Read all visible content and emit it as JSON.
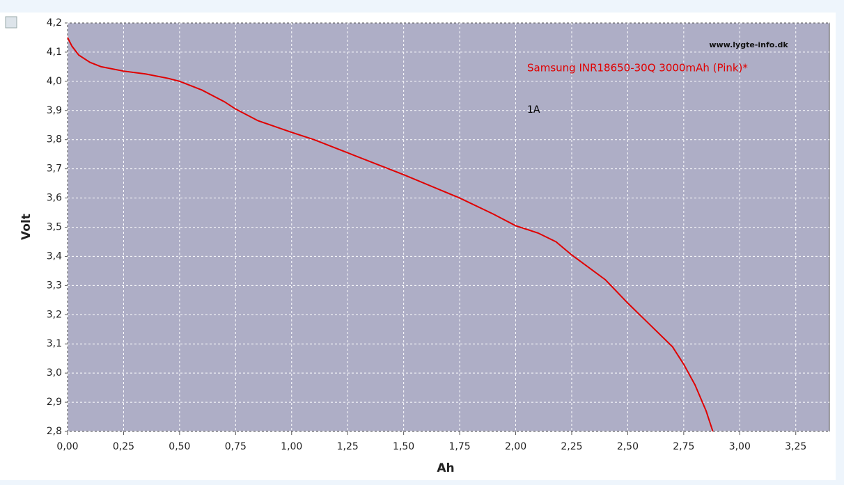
{
  "chart_data": {
    "type": "line",
    "x_label": "Ah",
    "y_label": "Volt",
    "annotations": [
      "www.lygte-info.dk",
      "Samsung INR18650-30Q 3000mAh (Pink)*",
      "1A"
    ],
    "x": [
      0,
      0.02,
      0.05,
      0.1,
      0.15,
      0.25,
      0.35,
      0.45,
      0.5,
      0.6,
      0.7,
      0.75,
      0.85,
      1.0,
      1.1,
      1.25,
      1.5,
      1.75,
      1.9,
      2.0,
      2.1,
      2.18,
      2.25,
      2.4,
      2.5,
      2.6,
      2.7,
      2.75,
      2.8,
      2.85,
      2.88
    ],
    "series": [
      {
        "name": "Samsung INR18650-30Q 3000mAh (Pink)*",
        "color": "#e00000",
        "values": [
          4.15,
          4.12,
          4.09,
          4.065,
          4.05,
          4.035,
          4.025,
          4.01,
          4.0,
          3.97,
          3.93,
          3.905,
          3.865,
          3.825,
          3.8,
          3.755,
          3.68,
          3.6,
          3.545,
          3.505,
          3.48,
          3.45,
          3.405,
          3.32,
          3.24,
          3.165,
          3.09,
          3.03,
          2.96,
          2.87,
          2.8
        ]
      }
    ],
    "xlim": [
      0,
      3.4
    ],
    "ylim": [
      2.8,
      4.2
    ],
    "xticks": [
      {
        "value": 0,
        "label": "0,00"
      },
      {
        "value": 0.25,
        "label": "0,25"
      },
      {
        "value": 0.5,
        "label": "0,50"
      },
      {
        "value": 0.75,
        "label": "0,75"
      },
      {
        "value": 1,
        "label": "1,00"
      },
      {
        "value": 1.25,
        "label": "1,25"
      },
      {
        "value": 1.5,
        "label": "1,50"
      },
      {
        "value": 1.75,
        "label": "1,75"
      },
      {
        "value": 2,
        "label": "2,00"
      },
      {
        "value": 2.25,
        "label": "2,25"
      },
      {
        "value": 2.5,
        "label": "2,50"
      },
      {
        "value": 2.75,
        "label": "2,75"
      },
      {
        "value": 3,
        "label": "3,00"
      },
      {
        "value": 3.25,
        "label": "3,25"
      }
    ],
    "yticks": [
      {
        "value": 2.8,
        "label": "2,8"
      },
      {
        "value": 2.9,
        "label": "2,9"
      },
      {
        "value": 3.0,
        "label": "3,0"
      },
      {
        "value": 3.1,
        "label": "3,1"
      },
      {
        "value": 3.2,
        "label": "3,2"
      },
      {
        "value": 3.3,
        "label": "3,3"
      },
      {
        "value": 3.4,
        "label": "3,4"
      },
      {
        "value": 3.5,
        "label": "3,5"
      },
      {
        "value": 3.6,
        "label": "3,6"
      },
      {
        "value": 3.7,
        "label": "3,7"
      },
      {
        "value": 3.8,
        "label": "3,8"
      },
      {
        "value": 3.9,
        "label": "3,9"
      },
      {
        "value": 4.0,
        "label": "4,0"
      },
      {
        "value": 4.1,
        "label": "4,1"
      },
      {
        "value": 4.2,
        "label": "4,2"
      }
    ],
    "grid": true
  }
}
